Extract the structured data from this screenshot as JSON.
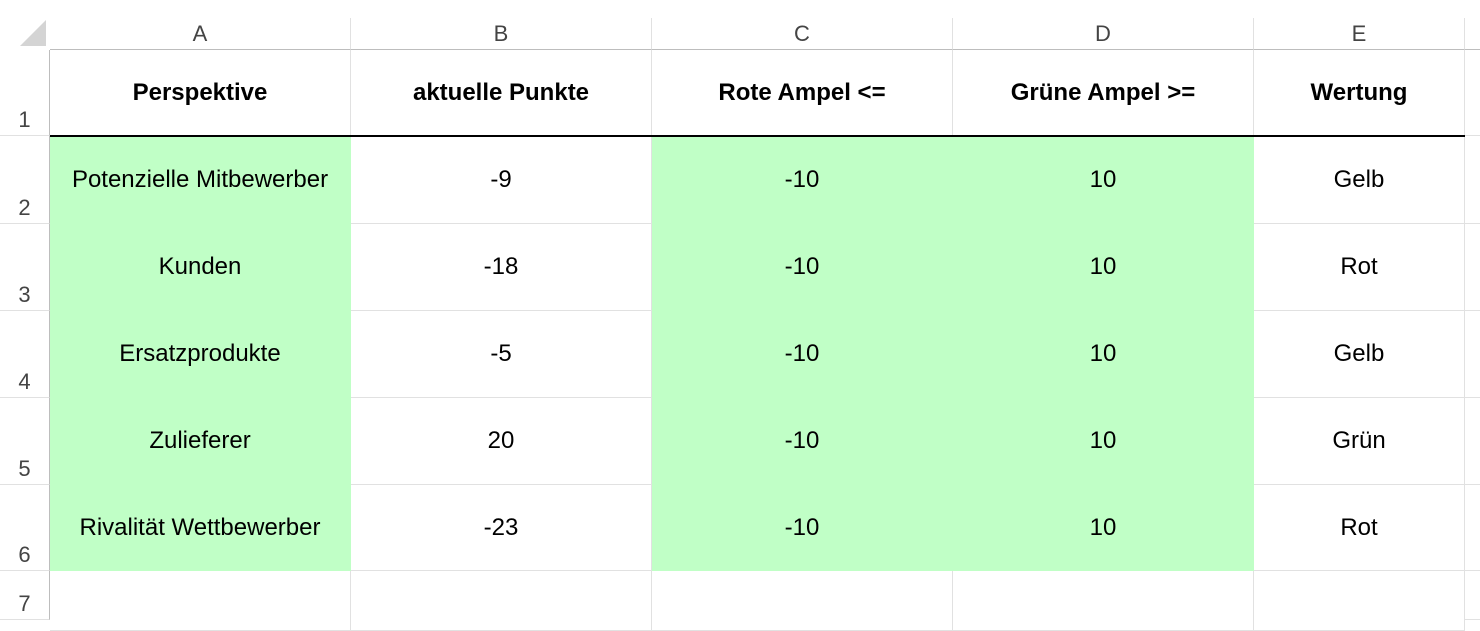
{
  "columns": [
    "A",
    "B",
    "C",
    "D",
    "E"
  ],
  "rows": [
    "1",
    "2",
    "3",
    "4",
    "5",
    "6",
    "7"
  ],
  "header": [
    "Perspektive",
    "aktuelle Punkte",
    "Rote Ampel <=",
    "Grüne Ampel >=",
    "Wertung"
  ],
  "data": [
    [
      "Potenzielle Mitbewerber",
      "-9",
      "-10",
      "10",
      "Gelb"
    ],
    [
      "Kunden",
      "-18",
      "-10",
      "10",
      "Rot"
    ],
    [
      "Ersatzprodukte",
      "-5",
      "-10",
      "10",
      "Gelb"
    ],
    [
      "Zulieferer",
      "20",
      "-10",
      "10",
      "Grün"
    ],
    [
      "Rivalität Wettbewerber",
      "-23",
      "-10",
      "10",
      "Rot"
    ]
  ],
  "colors": {
    "fill_green": "#c0ffc6",
    "gridline": "#e1e1e1",
    "header_text": "#444444"
  }
}
